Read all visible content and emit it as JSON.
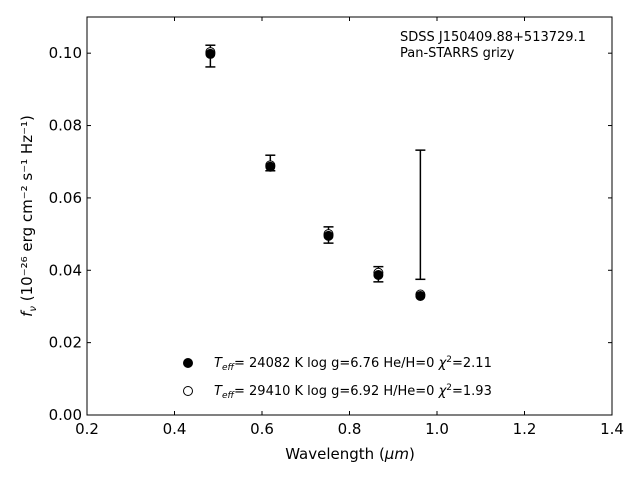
{
  "chart_data": {
    "type": "scatter",
    "xlabel": "Wavelength (",
    "xlabel_unit": "μm",
    "ylabel_main": "f",
    "ylabel_sub": "ν",
    "ylabel_units": "(10⁻²⁶ erg cm⁻² s⁻¹ Hz⁻¹)",
    "xlim": [
      0.2,
      1.4
    ],
    "ylim": [
      0.0,
      0.11
    ],
    "x_ticks": [
      "0.2",
      "0.4",
      "0.6",
      "0.8",
      "1.0",
      "1.2",
      "1.4"
    ],
    "x_tick_values": [
      0.2,
      0.4,
      0.6,
      0.8,
      1.0,
      1.2,
      1.4
    ],
    "y_ticks": [
      "0.00",
      "0.02",
      "0.04",
      "0.06",
      "0.08",
      "0.10"
    ],
    "y_tick_values": [
      0.0,
      0.02,
      0.04,
      0.06,
      0.08,
      0.1
    ],
    "annotation_lines": [
      "SDSS J150409.88+513729.1",
      "Pan-STARRS grizy"
    ],
    "observed": {
      "x": [
        0.482,
        0.619,
        0.752,
        0.866,
        0.962
      ],
      "y": [
        0.0992,
        0.0695,
        0.05,
        0.039,
        0.0553
      ],
      "yerr_low": [
        0.0962,
        0.0675,
        0.0475,
        0.0368,
        0.0375
      ],
      "yerr_high": [
        0.1022,
        0.0718,
        0.052,
        0.041,
        0.0732
      ]
    },
    "series": [
      {
        "marker": "filled",
        "x": [
          0.482,
          0.619,
          0.752,
          0.866,
          0.962
        ],
        "y": [
          0.0998,
          0.0686,
          0.0495,
          0.0387,
          0.0329
        ],
        "legend_label": {
          "T": "T",
          "sub": "eff",
          "text": "= 24082 K  log g=6.76  He/H=0  ",
          "chi": "χ",
          "sup": "2",
          "chi_val": "=2.11"
        }
      },
      {
        "marker": "open",
        "x": [
          0.482,
          0.619,
          0.752,
          0.866,
          0.962
        ],
        "y": [
          0.1003,
          0.069,
          0.05,
          0.0393,
          0.0333
        ],
        "legend_label": {
          "T": "T",
          "sub": "eff",
          "text": "= 29410 K  log g=6.92  H/He=0  ",
          "chi": "χ",
          "sup": "2",
          "chi_val": "=1.93"
        }
      }
    ],
    "grid": false,
    "legend_position": "bottom-center"
  }
}
